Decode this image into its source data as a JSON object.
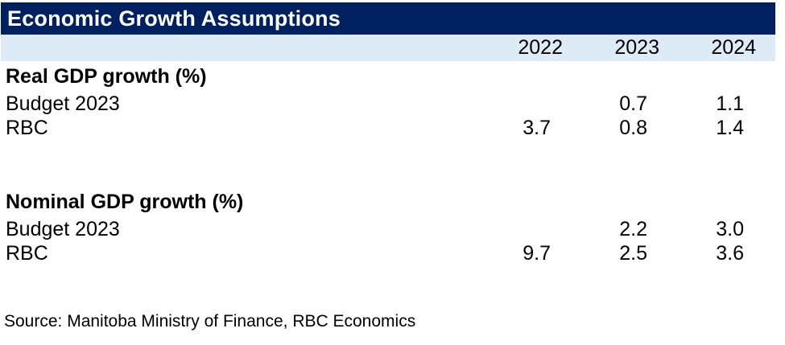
{
  "title": "Economic Growth Assumptions",
  "columns": [
    "2022",
    "2023",
    "2024"
  ],
  "sections": [
    {
      "header": "Real GDP growth (%)",
      "rows": [
        {
          "label": "Budget 2023",
          "values": [
            "",
            "0.7",
            "1.1"
          ]
        },
        {
          "label": "RBC",
          "values": [
            "3.7",
            "0.8",
            "1.4"
          ]
        }
      ]
    },
    {
      "header": "Nominal GDP growth (%)",
      "rows": [
        {
          "label": "Budget 2023",
          "values": [
            "",
            "2.2",
            "3.0"
          ]
        },
        {
          "label": "RBC",
          "values": [
            "9.7",
            "2.5",
            "3.6"
          ]
        }
      ]
    }
  ],
  "source": "Source: Manitoba Ministry of Finance, RBC Economics",
  "colors": {
    "header_bg": "#002060",
    "subheader_bg": "#DDEBF7",
    "text": "#000000",
    "title_text": "#FFFFFF"
  },
  "chart_data": {
    "type": "table",
    "title": "Economic Growth Assumptions",
    "columns": [
      "",
      "2022",
      "2023",
      "2024"
    ],
    "rows": [
      [
        "Real GDP growth (%)",
        "",
        "",
        ""
      ],
      [
        "Budget 2023",
        "",
        "0.7",
        "1.1"
      ],
      [
        "RBC",
        "3.7",
        "0.8",
        "1.4"
      ],
      [
        "Nominal GDP growth (%)",
        "",
        "",
        ""
      ],
      [
        "Budget 2023",
        "",
        "2.2",
        "3.0"
      ],
      [
        "RBC",
        "9.7",
        "2.5",
        "3.6"
      ]
    ],
    "series": [
      {
        "name": "Real GDP growth (%) - Budget 2023",
        "x": [
          "2023",
          "2024"
        ],
        "values": [
          0.7,
          1.1
        ]
      },
      {
        "name": "Real GDP growth (%) - RBC",
        "x": [
          "2022",
          "2023",
          "2024"
        ],
        "values": [
          3.7,
          0.8,
          1.4
        ]
      },
      {
        "name": "Nominal GDP growth (%) - Budget 2023",
        "x": [
          "2023",
          "2024"
        ],
        "values": [
          2.2,
          3.0
        ]
      },
      {
        "name": "Nominal GDP growth (%) - RBC",
        "x": [
          "2022",
          "2023",
          "2024"
        ],
        "values": [
          9.7,
          2.5,
          3.6
        ]
      }
    ],
    "source": "Source: Manitoba Ministry of Finance, RBC Economics"
  }
}
